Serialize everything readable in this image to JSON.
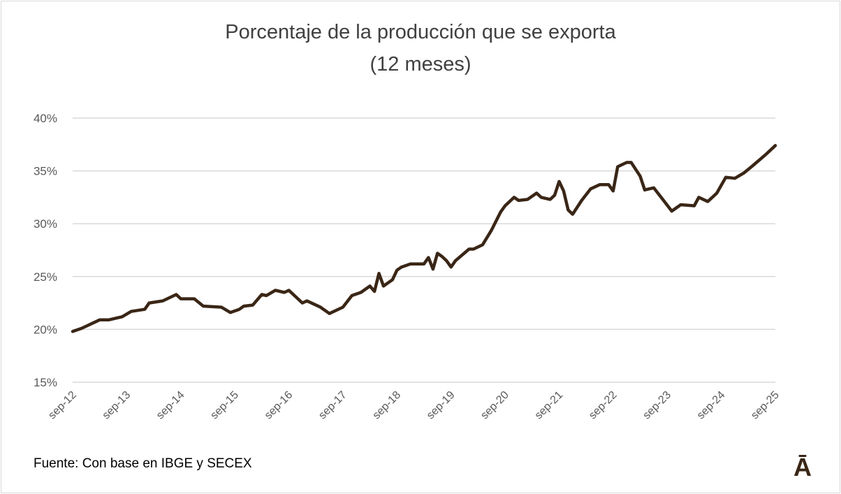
{
  "chart_data": {
    "type": "line",
    "title": "Porcentaje de la producción que se exporta",
    "subtitle": "(12 meses)",
    "xlabel": "",
    "ylabel": "",
    "ylim": [
      15,
      40
    ],
    "yticks": [
      "15%",
      "20%",
      "25%",
      "30%",
      "35%",
      "40%"
    ],
    "ytick_values": [
      15,
      20,
      25,
      30,
      35,
      40
    ],
    "xticks": [
      "sep-12",
      "sep-13",
      "sep-14",
      "sep-15",
      "sep-16",
      "sep-17",
      "sep-18",
      "sep-19",
      "sep-20",
      "sep-21",
      "sep-22",
      "sep-23",
      "sep-24",
      "sep-25"
    ],
    "xlim": [
      "2012-09",
      "2025-09"
    ],
    "grid": "horizontal",
    "line_color": "#3a2616",
    "series": [
      {
        "x": [
          "2012-09",
          "2012-11",
          "2013-03",
          "2013-05",
          "2013-08",
          "2013-10",
          "2014-01",
          "2014-02",
          "2014-05",
          "2014-08",
          "2014-09",
          "2014-12",
          "2015-02",
          "2015-06",
          "2015-08",
          "2015-10",
          "2015-11",
          "2016-01",
          "2016-03",
          "2016-04",
          "2016-06",
          "2016-08",
          "2016-09",
          "2016-12",
          "2017-01",
          "2017-04",
          "2017-06",
          "2017-09",
          "2017-11",
          "2018-01",
          "2018-03",
          "2018-04",
          "2018-05",
          "2018-06",
          "2018-08",
          "2018-09",
          "2018-10",
          "2018-12",
          "2019-02",
          "2019-03",
          "2019-04",
          "2019-05",
          "2019-06",
          "2019-07",
          "2019-08",
          "2019-09",
          "2019-10",
          "2020-01",
          "2020-02",
          "2020-04",
          "2020-06",
          "2020-08",
          "2020-09",
          "2020-11",
          "2020-12",
          "2021-02",
          "2021-04",
          "2021-05",
          "2021-07",
          "2021-08",
          "2021-09",
          "2021-10",
          "2021-11",
          "2021-12",
          "2022-02",
          "2022-04",
          "2022-06",
          "2022-08",
          "2022-09",
          "2022-10",
          "2022-12",
          "2023-01",
          "2023-03",
          "2023-04",
          "2023-06",
          "2023-08",
          "2023-10",
          "2023-12",
          "2024-03",
          "2024-04",
          "2024-06",
          "2024-08",
          "2024-10",
          "2024-12",
          "2025-02",
          "2025-04",
          "2025-07",
          "2025-09"
        ],
        "y": [
          19.8,
          20.1,
          20.9,
          20.9,
          21.2,
          21.7,
          21.9,
          22.5,
          22.7,
          23.3,
          22.9,
          22.9,
          22.2,
          22.1,
          21.6,
          21.9,
          22.2,
          22.3,
          23.3,
          23.2,
          23.7,
          23.5,
          23.7,
          22.5,
          22.7,
          22.1,
          21.5,
          22.1,
          23.2,
          23.5,
          24.1,
          23.6,
          25.3,
          24.1,
          24.7,
          25.6,
          25.9,
          26.2,
          26.2,
          26.2,
          26.8,
          25.7,
          27.2,
          26.9,
          26.5,
          25.9,
          26.5,
          27.6,
          27.6,
          28.0,
          29.4,
          31.1,
          31.7,
          32.5,
          32.2,
          32.3,
          32.9,
          32.5,
          32.3,
          32.7,
          34.0,
          33.1,
          31.3,
          30.9,
          32.2,
          33.3,
          33.7,
          33.7,
          33.1,
          35.4,
          35.8,
          35.8,
          34.5,
          33.2,
          33.4,
          32.3,
          31.2,
          31.8,
          31.7,
          32.5,
          32.1,
          32.9,
          34.4,
          34.3,
          34.8,
          35.5,
          36.6,
          37.4
        ]
      }
    ],
    "source": "Fuente: Con base en IBGE y SECEX",
    "logo_text": "Ā"
  }
}
